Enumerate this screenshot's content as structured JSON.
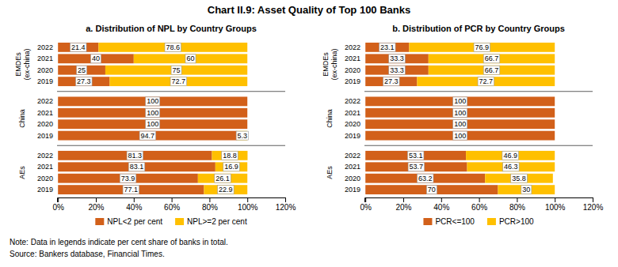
{
  "title": "Chart II.9: Asset Quality of Top 100 Banks",
  "annotations": [
    "Note: Data in legends indicate per cent share of banks in total.",
    "Source: Bankers database, Financial Times."
  ],
  "chart_data": [
    {
      "type": "bar",
      "title": "a. Distribution of NPL by Country Groups",
      "orientation": "horizontal",
      "stacked": true,
      "data_labels": true,
      "legend": "bottom",
      "grid": false,
      "groups": [
        "EMDEs\n(ex-china)",
        "China",
        "AEs"
      ],
      "categories": [
        "2022",
        "2021",
        "2020",
        "2019",
        "2022",
        "2021",
        "2020",
        "2019",
        "2022",
        "2021",
        "2020",
        "2019"
      ],
      "series": [
        {
          "name": "NPL<2 per cent",
          "color": "#D2601A",
          "values": [
            21.4,
            40.0,
            25.0,
            27.3,
            100,
            100,
            100,
            94.7,
            81.3,
            83.1,
            73.9,
            77.1
          ]
        },
        {
          "name": "NPL>=2 per cent",
          "color": "#FFC000",
          "values": [
            78.6,
            60.0,
            75.0,
            72.7,
            0,
            0,
            0,
            5.3,
            18.8,
            16.9,
            26.1,
            22.9
          ]
        }
      ],
      "xlim": [
        -0.5,
        120
      ],
      "xticks": [
        {
          "value": 0,
          "label": "0%"
        },
        {
          "value": 20,
          "label": "20%"
        },
        {
          "value": 40,
          "label": "40%"
        },
        {
          "value": 60,
          "label": "60%"
        },
        {
          "value": 80,
          "label": "80%"
        },
        {
          "value": 100,
          "label": "100%"
        },
        {
          "value": 120,
          "label": "120%"
        }
      ]
    },
    {
      "type": "bar",
      "title": "b. Distribution of PCR by Country Groups",
      "orientation": "horizontal",
      "stacked": true,
      "data_labels": true,
      "legend": "bottom",
      "grid": false,
      "groups": [
        "EMDEs\n(ex-china)",
        "China",
        "AEs"
      ],
      "categories": [
        "2022",
        "2021",
        "2020",
        "2019",
        "2022",
        "2021",
        "2020",
        "2019",
        "2022",
        "2021",
        "2020",
        "2019"
      ],
      "series": [
        {
          "name": "PCR<=100",
          "color": "#D2601A",
          "values": [
            23.1,
            33.3,
            33.3,
            27.3,
            100,
            100,
            100,
            100,
            53.1,
            53.7,
            63.2,
            70.0
          ]
        },
        {
          "name": "PCR>100",
          "color": "#FFC000",
          "values": [
            76.9,
            66.7,
            66.7,
            72.7,
            0,
            0,
            0,
            0,
            46.9,
            46.3,
            35.8,
            30.0
          ]
        }
      ],
      "xlim": [
        -0.5,
        120
      ],
      "xticks": [
        {
          "value": 0,
          "label": "0%"
        },
        {
          "value": 20,
          "label": "20%"
        },
        {
          "value": 40,
          "label": "40%"
        },
        {
          "value": 60,
          "label": "60%"
        },
        {
          "value": 80,
          "label": "80%"
        },
        {
          "value": 100,
          "label": "100%"
        },
        {
          "value": 120,
          "label": "120%"
        }
      ]
    }
  ]
}
